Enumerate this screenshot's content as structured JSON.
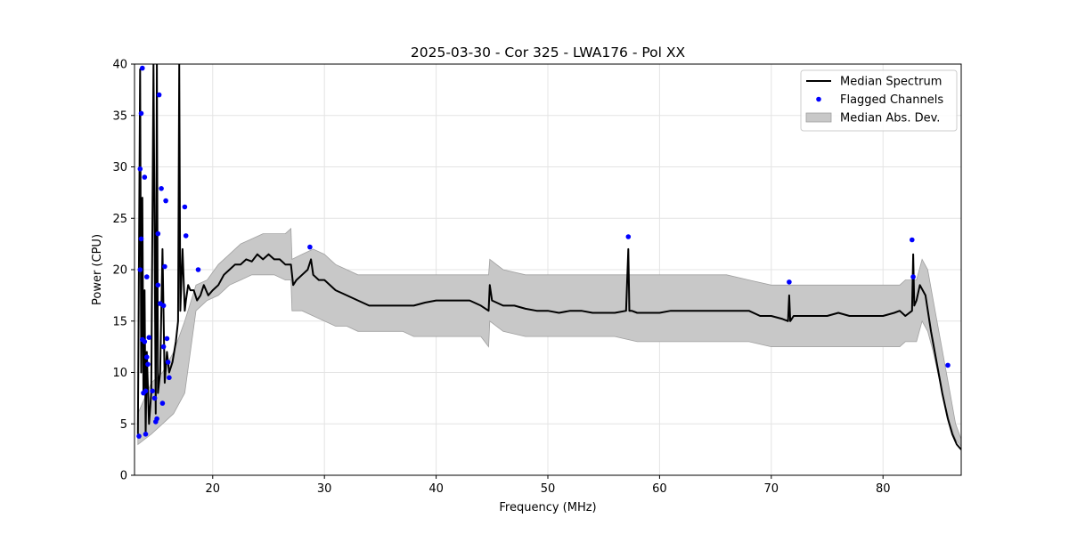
{
  "chart_data": {
    "type": "line",
    "title": "2025-03-30 - Cor 325 - LWA176 - Pol XX",
    "xlabel": "Frequency (MHz)",
    "ylabel": "Power (CPU)",
    "xlim": [
      13,
      87
    ],
    "ylim": [
      0,
      40
    ],
    "xticks": [
      20,
      30,
      40,
      50,
      60,
      70,
      80
    ],
    "yticks": [
      0,
      5,
      10,
      15,
      20,
      25,
      30,
      35,
      40
    ],
    "grid": true,
    "legend_position": "top-right",
    "legend": [
      {
        "label": "Median Spectrum",
        "kind": "line",
        "color": "#000000"
      },
      {
        "label": "Flagged Channels",
        "kind": "point",
        "color": "#0000ff"
      },
      {
        "label": "Median Abs. Dev.",
        "kind": "band",
        "color": "#c8c8c8"
      }
    ],
    "series": [
      {
        "name": "Median Spectrum",
        "kind": "line",
        "color": "#000000",
        "x": [
          13.3,
          13.5,
          13.6,
          13.7,
          13.8,
          13.9,
          14.0,
          14.1,
          14.3,
          14.5,
          14.7,
          14.9,
          15.0,
          15.1,
          15.3,
          15.5,
          15.7,
          15.9,
          16.1,
          16.4,
          16.7,
          16.9,
          17.0,
          17.1,
          17.3,
          17.5,
          17.6,
          17.8,
          18.0,
          18.3,
          18.6,
          18.9,
          19.2,
          19.6,
          20.0,
          20.5,
          21.0,
          21.5,
          22.0,
          22.5,
          23.0,
          23.5,
          24.0,
          24.5,
          25.0,
          25.5,
          26.0,
          26.5,
          27.0,
          27.2,
          27.5,
          28.0,
          28.5,
          28.8,
          29.0,
          29.5,
          30.0,
          31.0,
          32.0,
          33.0,
          34.0,
          35.0,
          36.0,
          37.0,
          38.0,
          39.0,
          40.0,
          41.0,
          42.0,
          43.0,
          44.0,
          44.7,
          44.8,
          45.0,
          46.0,
          47.0,
          48.0,
          49.0,
          50.0,
          51.0,
          52.0,
          53.0,
          54.0,
          55.0,
          56.0,
          57.0,
          57.2,
          57.3,
          57.5,
          58.0,
          59.0,
          60.0,
          61.0,
          62.0,
          63.0,
          64.0,
          65.0,
          66.0,
          67.0,
          68.0,
          69.0,
          70.0,
          71.0,
          71.5,
          71.6,
          71.7,
          72.0,
          73.0,
          74.0,
          75.0,
          76.0,
          77.0,
          78.0,
          79.0,
          80.0,
          81.0,
          81.5,
          82.0,
          82.6,
          82.7,
          82.8,
          83.0,
          83.3,
          83.8,
          84.3,
          84.8,
          85.3,
          85.8,
          86.2,
          86.6,
          87.0
        ],
        "y": [
          4,
          39.5,
          10,
          27,
          8,
          18,
          4,
          12,
          5,
          8,
          40,
          6,
          40,
          8,
          10,
          22,
          9,
          12,
          10,
          11,
          13,
          15,
          40,
          16,
          22,
          16,
          17,
          18.5,
          18,
          18,
          17,
          17.5,
          18.5,
          17.5,
          18,
          18.5,
          19.5,
          20,
          20.5,
          20.5,
          21,
          20.8,
          21.5,
          21,
          21.5,
          21,
          21,
          20.5,
          20.5,
          18.5,
          19,
          19.5,
          20,
          21,
          19.5,
          19,
          19,
          18,
          17.5,
          17,
          16.5,
          16.5,
          16.5,
          16.5,
          16.5,
          16.8,
          17,
          17,
          17,
          17,
          16.5,
          16,
          18.5,
          17,
          16.5,
          16.5,
          16.2,
          16,
          16,
          15.8,
          16,
          16,
          15.8,
          15.8,
          15.8,
          16,
          22,
          16,
          16,
          15.8,
          15.8,
          15.8,
          16,
          16,
          16,
          16,
          16,
          16,
          16,
          16,
          15.5,
          15.5,
          15.2,
          15,
          17.5,
          15,
          15.5,
          15.5,
          15.5,
          15.5,
          15.8,
          15.5,
          15.5,
          15.5,
          15.5,
          15.8,
          16,
          15.5,
          16,
          21.5,
          16.5,
          17,
          18.5,
          17.5,
          14,
          11,
          8,
          5.5,
          4,
          3,
          2.5
        ]
      },
      {
        "name": "Flagged Channels",
        "kind": "scatter",
        "color": "#0000ff",
        "x": [
          13.4,
          13.5,
          13.5,
          13.6,
          13.6,
          13.7,
          13.7,
          13.8,
          13.9,
          13.9,
          14.0,
          14.0,
          14.1,
          14.1,
          14.2,
          14.3,
          14.6,
          14.8,
          14.9,
          15.0,
          15.1,
          15.1,
          15.2,
          15.3,
          15.4,
          15.5,
          15.6,
          15.6,
          15.7,
          15.8,
          15.9,
          16.0,
          16.1,
          17.5,
          17.6,
          18.7,
          28.7,
          57.2,
          71.6,
          82.6,
          82.7,
          85.8
        ],
        "y": [
          3.8,
          20,
          29.8,
          23,
          35.2,
          13.2,
          39.6,
          8,
          29,
          13,
          4,
          8.2,
          11.5,
          19.3,
          10.8,
          13.4,
          8.2,
          7.5,
          5.2,
          5.5,
          18.5,
          23.5,
          37,
          16.7,
          27.9,
          7,
          16.5,
          12.5,
          20.3,
          26.7,
          13.3,
          11,
          9.5,
          26.1,
          23.3,
          20,
          22.2,
          23.2,
          18.8,
          22.9,
          19.3,
          10.7
        ]
      }
    ],
    "bands": [
      {
        "name": "Median Abs. Dev.",
        "color": "#c8c8c8",
        "x": [
          13.3,
          14.5,
          15.5,
          16.5,
          17.5,
          18.5,
          19.5,
          20.5,
          21.5,
          22.5,
          23.5,
          24.5,
          25.5,
          26.5,
          27.0,
          27.1,
          28.0,
          29.0,
          30.0,
          31.0,
          32.0,
          33.0,
          34.0,
          35.0,
          36.0,
          37.0,
          38.0,
          39.0,
          40.0,
          41.0,
          42.0,
          43.0,
          44.0,
          44.7,
          44.8,
          46.0,
          48.0,
          50.0,
          52.0,
          54.0,
          56.0,
          58.0,
          60.0,
          62.0,
          64.0,
          66.0,
          68.0,
          70.0,
          72.0,
          74.0,
          76.0,
          78.0,
          80.0,
          81.5,
          82.0,
          83.0,
          83.5,
          84.0,
          84.5,
          85.0,
          85.5,
          86.0,
          86.5,
          87.0
        ],
        "upper": [
          6,
          9,
          10,
          12,
          15,
          18.5,
          19,
          20.5,
          21.5,
          22.5,
          23,
          23.5,
          23.5,
          23.5,
          24,
          21,
          21.5,
          22,
          21.5,
          20.5,
          20,
          19.5,
          19.5,
          19.5,
          19.5,
          19.5,
          19.5,
          19.5,
          19.5,
          19.5,
          19.5,
          19.5,
          19.5,
          19.5,
          21,
          20,
          19.5,
          19.5,
          19.5,
          19.5,
          19.5,
          19.5,
          19.5,
          19.5,
          19.5,
          19.5,
          19,
          18.5,
          18.5,
          18.5,
          18.5,
          18.5,
          18.5,
          18.5,
          19,
          19,
          21,
          20,
          17,
          14,
          11,
          8,
          5,
          3.5
        ],
        "lower": [
          3,
          4,
          5,
          6,
          8,
          16,
          17,
          17.5,
          18.5,
          19,
          19.5,
          19.5,
          19.5,
          19,
          19,
          16,
          16,
          15.5,
          15,
          14.5,
          14.5,
          14,
          14,
          14,
          14,
          14,
          13.5,
          13.5,
          13.5,
          13.5,
          13.5,
          13.5,
          13.5,
          12.5,
          15,
          14,
          13.5,
          13.5,
          13.5,
          13.5,
          13.5,
          13,
          13,
          13,
          13,
          13,
          13,
          12.5,
          12.5,
          12.5,
          12.5,
          12.5,
          12.5,
          12.5,
          13,
          13,
          15,
          14,
          12,
          9.5,
          7,
          5,
          3.5,
          2.8
        ]
      }
    ]
  }
}
